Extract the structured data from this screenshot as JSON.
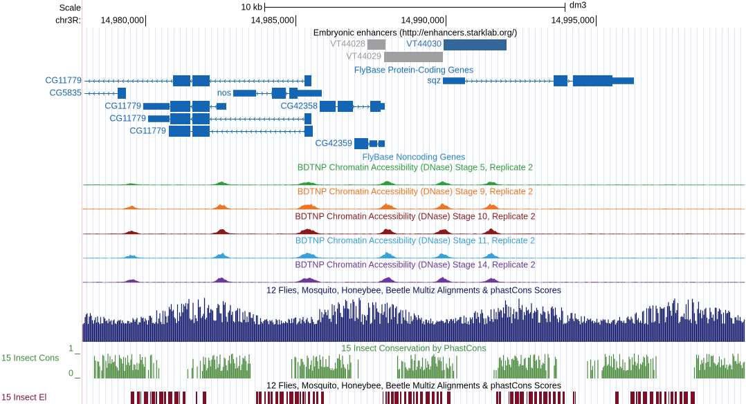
{
  "ruler": {
    "scale": "Scale",
    "chrom": "chr3R:",
    "span": "10 kb",
    "assembly": "dm3",
    "positions": [
      "14,980,000",
      "14,985,000",
      "14,990,000",
      "14,995,000"
    ]
  },
  "tracks": {
    "enhancers": {
      "title": "Embryonic enhancers (http://enhancers.starklab.org/)",
      "items": [
        "VT44028",
        "VT44030",
        "VT44029"
      ]
    },
    "protein_coding": {
      "title": "FlyBase Protein-Coding Genes",
      "genes": [
        "CG11779",
        "sqz",
        "CG5835",
        "nos",
        "CG11779",
        "CG42358",
        "CG11779",
        "CG11779",
        "CG42359"
      ]
    },
    "noncoding_title": "FlyBase Noncoding Genes",
    "dnase": [
      "BDTNP Chromatin Accessibility (DNase) Stage 5, Replicate 2",
      "BDTNP Chromatin Accessibility (DNase) Stage 9, Replicate 2",
      "BDTNP Chromatin Accessibility (DNase) Stage 10, Replicate 2",
      "BDTNP Chromatin Accessibility (DNase) Stage 11, Replicate 2",
      "BDTNP Chromatin Accessibility (DNase) Stage 14, Replicate 2"
    ],
    "multiz_title": "12 Flies, Mosquito, Honeybee, Beetle Multiz Alignments & phastCons Scores",
    "phastcons": {
      "title": "15 Insect Conservation by PhastCons",
      "short_label": "15 Insect Cons",
      "max_label": "1",
      "min_label": "0"
    },
    "elements": {
      "title": "12 Flies, Mosquito, Honeybee, Beetle Multiz Alignments & phastCons Scores",
      "short_label": "15 Insect El"
    }
  }
}
